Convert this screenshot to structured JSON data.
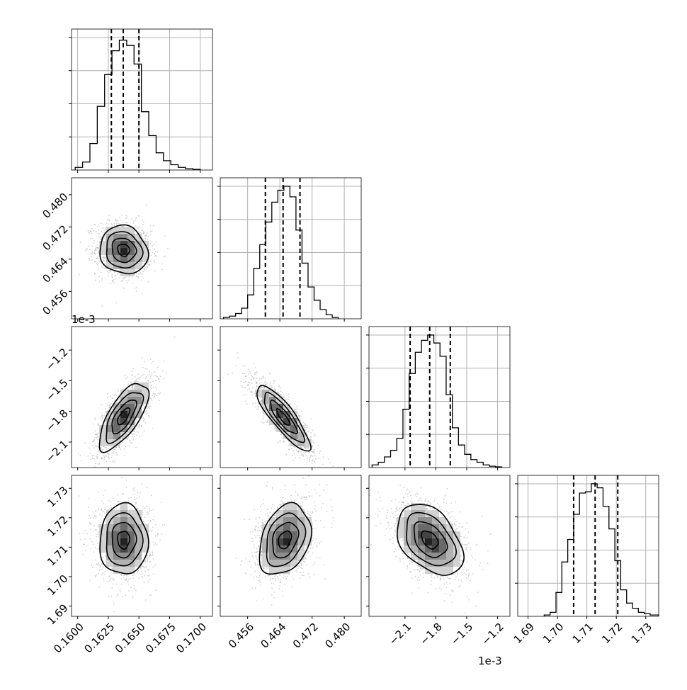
{
  "figure": {
    "type": "corner_plot",
    "offset_label": "1e-3"
  },
  "chart_data": [
    {
      "type": "histogram",
      "panel": "hist-param-1",
      "xlim": [
        0.1595,
        0.171
      ],
      "xticks": [
        "0.1600",
        "0.1625",
        "0.1650",
        "0.1675",
        "0.1700"
      ],
      "bins": [
        [
          0.1598,
          0.1604,
          0.02
        ],
        [
          0.1604,
          0.161,
          0.06
        ],
        [
          0.161,
          0.1616,
          0.2
        ],
        [
          0.1616,
          0.1622,
          0.48
        ],
        [
          0.1622,
          0.1628,
          0.72
        ],
        [
          0.1628,
          0.1634,
          0.9
        ],
        [
          0.1634,
          0.164,
          0.98
        ],
        [
          0.164,
          0.1646,
          0.94
        ],
        [
          0.1646,
          0.1652,
          0.8
        ],
        [
          0.1652,
          0.1658,
          0.44
        ],
        [
          0.1658,
          0.1664,
          0.26
        ],
        [
          0.1664,
          0.167,
          0.13
        ],
        [
          0.167,
          0.1676,
          0.07
        ],
        [
          0.1676,
          0.1682,
          0.04
        ],
        [
          0.1682,
          0.1688,
          0.02
        ],
        [
          0.1688,
          0.1694,
          0.01
        ],
        [
          0.1694,
          0.17,
          0.005
        ]
      ],
      "quantiles": [
        0.16275,
        0.16372,
        0.165
      ]
    },
    {
      "type": "histogram",
      "panel": "hist-param-2",
      "xlim": [
        0.4492,
        0.4842
      ],
      "xticks": [
        "0.456",
        "0.464",
        "0.472",
        "0.480"
      ],
      "bins": [
        [
          0.45,
          0.4515,
          0.01
        ],
        [
          0.4515,
          0.453,
          0.02
        ],
        [
          0.453,
          0.4545,
          0.04
        ],
        [
          0.4545,
          0.456,
          0.08
        ],
        [
          0.456,
          0.4575,
          0.18
        ],
        [
          0.4575,
          0.459,
          0.38
        ],
        [
          0.459,
          0.4605,
          0.56
        ],
        [
          0.4605,
          0.462,
          0.73
        ],
        [
          0.462,
          0.4635,
          0.88
        ],
        [
          0.4635,
          0.465,
          0.97
        ],
        [
          0.465,
          0.4665,
          1.0
        ],
        [
          0.4665,
          0.468,
          0.92
        ],
        [
          0.468,
          0.4695,
          0.67
        ],
        [
          0.4695,
          0.471,
          0.42
        ],
        [
          0.471,
          0.4725,
          0.24
        ],
        [
          0.4725,
          0.474,
          0.14
        ],
        [
          0.474,
          0.4755,
          0.07
        ],
        [
          0.4755,
          0.477,
          0.03
        ],
        [
          0.477,
          0.4785,
          0.01
        ]
      ],
      "quantiles": [
        0.4604,
        0.4648,
        0.469
      ]
    },
    {
      "type": "histogram",
      "panel": "hist-param-3",
      "xlim": [
        -2.45,
        -1.08
      ],
      "xticks": [
        "−2.1",
        "−1.8",
        "−1.5",
        "−1.2"
      ],
      "bins": [
        [
          -2.42,
          -2.36,
          0.02
        ],
        [
          -2.36,
          -2.3,
          0.04
        ],
        [
          -2.3,
          -2.24,
          0.08
        ],
        [
          -2.24,
          -2.18,
          0.13
        ],
        [
          -2.18,
          -2.12,
          0.22
        ],
        [
          -2.12,
          -2.06,
          0.44
        ],
        [
          -2.06,
          -2.0,
          0.71
        ],
        [
          -2.0,
          -1.94,
          0.87
        ],
        [
          -1.94,
          -1.88,
          0.96
        ],
        [
          -1.88,
          -1.82,
          1.0
        ],
        [
          -1.82,
          -1.76,
          0.94
        ],
        [
          -1.76,
          -1.7,
          0.84
        ],
        [
          -1.7,
          -1.64,
          0.55
        ],
        [
          -1.64,
          -1.58,
          0.3
        ],
        [
          -1.58,
          -1.52,
          0.17
        ],
        [
          -1.52,
          -1.46,
          0.1
        ],
        [
          -1.46,
          -1.4,
          0.06
        ],
        [
          -1.4,
          -1.34,
          0.04
        ],
        [
          -1.34,
          -1.28,
          0.02
        ],
        [
          -1.28,
          -1.22,
          0.01
        ],
        [
          -1.22,
          -1.16,
          0.005
        ]
      ],
      "quantiles": [
        -2.05,
        -1.86,
        -1.66
      ]
    },
    {
      "type": "histogram",
      "panel": "hist-param-4",
      "xlim": [
        1.6865,
        1.7344
      ],
      "xticks": [
        "1.69",
        "1.70",
        "1.71",
        "1.72",
        "1.73"
      ],
      "bins": [
        [
          1.6955,
          1.6975,
          0.01
        ],
        [
          1.6975,
          1.6995,
          0.03
        ],
        [
          1.6995,
          1.7015,
          0.18
        ],
        [
          1.7015,
          1.7035,
          0.41
        ],
        [
          1.7035,
          1.7055,
          0.58
        ],
        [
          1.7055,
          1.7075,
          0.77
        ],
        [
          1.7075,
          1.7095,
          0.93
        ],
        [
          1.7095,
          1.7115,
          0.94
        ],
        [
          1.7115,
          1.7135,
          1.0
        ],
        [
          1.7135,
          1.7155,
          0.97
        ],
        [
          1.7155,
          1.7175,
          0.83
        ],
        [
          1.7175,
          1.7195,
          0.66
        ],
        [
          1.7195,
          1.7215,
          0.42
        ],
        [
          1.7215,
          1.7235,
          0.2
        ],
        [
          1.7235,
          1.7255,
          0.1
        ],
        [
          1.7255,
          1.7275,
          0.06
        ],
        [
          1.7275,
          1.7295,
          0.03
        ],
        [
          1.7295,
          1.7315,
          0.02
        ],
        [
          1.7315,
          1.7344,
          0.01
        ]
      ],
      "quantiles": [
        1.7055,
        1.7128,
        1.7205
      ]
    },
    {
      "type": "heatmap",
      "panel": "scatter-2-vs-1",
      "xlim": [
        0.1595,
        0.171
      ],
      "ylim": [
        0.4492,
        0.4842
      ],
      "yticks": [
        "0.456",
        "0.464",
        "0.472",
        "0.480"
      ],
      "center": [
        0.16375,
        0.46625
      ],
      "sigma": [
        0.00098,
        0.003
      ],
      "rho": -0.1
    },
    {
      "type": "heatmap",
      "panel": "scatter-3-vs-1",
      "xlim": [
        0.1595,
        0.171
      ],
      "ylim": [
        -2.35,
        -0.97
      ],
      "yticks": [
        "−2.1",
        "−1.8",
        "−1.5",
        "−1.2"
      ],
      "center": [
        0.16375,
        -1.85
      ],
      "sigma": [
        0.001,
        0.165
      ],
      "rho": 0.7
    },
    {
      "type": "heatmap",
      "panel": "scatter-3-vs-2",
      "xlim": [
        0.4492,
        0.4842
      ],
      "ylim": [
        -2.35,
        -0.97
      ],
      "center": [
        0.46485,
        -1.86
      ],
      "sigma": [
        0.0033,
        0.16
      ],
      "rho": -0.85
    },
    {
      "type": "heatmap",
      "panel": "scatter-4-vs-1",
      "xlim": [
        0.1595,
        0.171
      ],
      "ylim": [
        1.6865,
        1.7344
      ],
      "yticks": [
        "1.69",
        "1.70",
        "1.71",
        "1.72",
        "1.73"
      ],
      "center": [
        0.16375,
        1.7125
      ],
      "sigma": [
        0.00098,
        0.006
      ],
      "rho": 0.0
    },
    {
      "type": "heatmap",
      "panel": "scatter-4-vs-2",
      "xlim": [
        0.4492,
        0.4842
      ],
      "ylim": [
        1.6865,
        1.7344
      ],
      "center": [
        0.46525,
        1.7125
      ],
      "sigma": [
        0.0032,
        0.006
      ],
      "rho": 0.3
    },
    {
      "type": "heatmap",
      "panel": "scatter-4-vs-3",
      "xlim": [
        -2.45,
        -1.08
      ],
      "ylim": [
        1.6865,
        1.7344
      ],
      "center": [
        -1.86,
        1.7125
      ],
      "sigma": [
        0.16,
        0.006
      ],
      "rho": -0.4
    }
  ]
}
